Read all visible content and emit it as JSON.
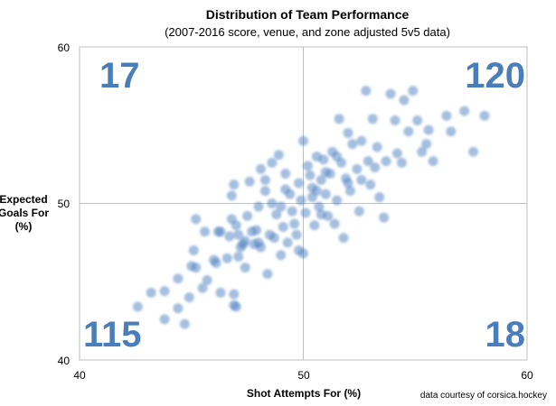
{
  "chart_data": {
    "type": "scatter",
    "title": "Distribution of Team Performance",
    "subtitle": "(2007-2016 score, venue, and zone adjusted 5v5 data)",
    "xlabel": "Shot Attempts For (%)",
    "ylabel": [
      "Expected",
      "Goals For",
      "(%)"
    ],
    "xlim": [
      40,
      60
    ],
    "ylim": [
      40,
      60
    ],
    "xticks": [
      "40",
      "50",
      "60"
    ],
    "yticks": [
      "40",
      "50",
      "60"
    ],
    "grid": "center lines at 50",
    "point_color": "#4a7fc0",
    "quadrant_counts": {
      "top_left": "17",
      "top_right": "120",
      "bottom_left": "115",
      "bottom_right": "18"
    },
    "quadrant_color": "#4a7ebb",
    "credit": "data courtesy of corsica.hockey",
    "points": [
      [
        42.6,
        43.4
      ],
      [
        43.2,
        44.3
      ],
      [
        43.8,
        44.4
      ],
      [
        43.8,
        42.6
      ],
      [
        44.4,
        45.2
      ],
      [
        44.4,
        43.3
      ],
      [
        44.7,
        42.3
      ],
      [
        44.9,
        44.0
      ],
      [
        45.0,
        46.0
      ],
      [
        45.1,
        47.0
      ],
      [
        45.2,
        45.9
      ],
      [
        45.2,
        49.0
      ],
      [
        45.5,
        44.6
      ],
      [
        45.6,
        48.2
      ],
      [
        45.7,
        45.1
      ],
      [
        46.0,
        46.4
      ],
      [
        46.1,
        46.2
      ],
      [
        46.3,
        44.3
      ],
      [
        46.3,
        48.2
      ],
      [
        46.6,
        46.5
      ],
      [
        46.7,
        47.9
      ],
      [
        46.9,
        44.2
      ],
      [
        46.9,
        43.5
      ],
      [
        47.0,
        43.4
      ],
      [
        46.9,
        51.2
      ],
      [
        46.8,
        49.0
      ],
      [
        46.8,
        50.5
      ],
      [
        47.0,
        48.6
      ],
      [
        47.1,
        46.6
      ],
      [
        47.2,
        47.2
      ],
      [
        47.4,
        47.6
      ],
      [
        47.4,
        45.9
      ],
      [
        47.5,
        49.2
      ],
      [
        47.6,
        51.4
      ],
      [
        47.8,
        47.4
      ],
      [
        47.9,
        48.3
      ],
      [
        48.0,
        49.8
      ],
      [
        48.1,
        47.2
      ],
      [
        48.1,
        52.2
      ],
      [
        48.3,
        51.5
      ],
      [
        48.4,
        45.5
      ],
      [
        48.5,
        48.0
      ],
      [
        48.6,
        50.0
      ],
      [
        48.7,
        47.8
      ],
      [
        48.8,
        49.3
      ],
      [
        48.9,
        53.1
      ],
      [
        49.0,
        46.7
      ],
      [
        49.1,
        48.5
      ],
      [
        49.2,
        51.9
      ],
      [
        49.3,
        47.5
      ],
      [
        49.4,
        50.6
      ],
      [
        49.5,
        49.5
      ],
      [
        49.6,
        48.7
      ],
      [
        49.8,
        47.0
      ],
      [
        49.8,
        51.3
      ],
      [
        49.9,
        50.2
      ],
      [
        50.0,
        46.8
      ],
      [
        50.0,
        54.0
      ],
      [
        50.1,
        49.4
      ],
      [
        50.2,
        52.4
      ],
      [
        50.3,
        51.8
      ],
      [
        50.4,
        50.4
      ],
      [
        50.5,
        48.6
      ],
      [
        50.6,
        53.0
      ],
      [
        50.7,
        49.8
      ],
      [
        50.8,
        51.5
      ],
      [
        50.9,
        52.8
      ],
      [
        51.0,
        50.6
      ],
      [
        51.1,
        49.2
      ],
      [
        51.2,
        51.9
      ],
      [
        51.3,
        53.3
      ],
      [
        51.4,
        48.7
      ],
      [
        51.5,
        50.2
      ],
      [
        51.6,
        55.4
      ],
      [
        51.7,
        52.6
      ],
      [
        51.8,
        47.8
      ],
      [
        51.9,
        51.6
      ],
      [
        52.0,
        54.5
      ],
      [
        52.1,
        50.8
      ],
      [
        52.2,
        53.8
      ],
      [
        52.4,
        52.2
      ],
      [
        52.5,
        49.5
      ],
      [
        52.6,
        54.0
      ],
      [
        52.8,
        57.2
      ],
      [
        52.9,
        52.7
      ],
      [
        53.0,
        51.2
      ],
      [
        53.1,
        55.4
      ],
      [
        53.3,
        53.6
      ],
      [
        53.4,
        50.4
      ],
      [
        53.6,
        49.1
      ],
      [
        53.7,
        52.7
      ],
      [
        53.9,
        57.0
      ],
      [
        54.1,
        55.3
      ],
      [
        54.2,
        53.2
      ],
      [
        54.4,
        52.6
      ],
      [
        54.5,
        56.6
      ],
      [
        54.7,
        54.6
      ],
      [
        54.9,
        57.2
      ],
      [
        55.1,
        55.3
      ],
      [
        55.3,
        53.3
      ],
      [
        55.5,
        53.8
      ],
      [
        55.6,
        54.7
      ],
      [
        55.8,
        52.7
      ],
      [
        56.4,
        55.6
      ],
      [
        56.6,
        54.6
      ],
      [
        57.2,
        55.9
      ],
      [
        57.6,
        53.3
      ],
      [
        58.1,
        55.6
      ],
      [
        48.3,
        50.8
      ],
      [
        47.7,
        48.2
      ],
      [
        49.0,
        49.8
      ],
      [
        50.4,
        51.0
      ],
      [
        51.0,
        52.0
      ],
      [
        52.0,
        51.3
      ],
      [
        46.2,
        48.2
      ],
      [
        47.3,
        47.4
      ],
      [
        48.0,
        47.5
      ],
      [
        49.7,
        48.0
      ],
      [
        50.8,
        49.3
      ],
      [
        49.2,
        50.9
      ],
      [
        48.6,
        52.6
      ],
      [
        47.1,
        48.0
      ],
      [
        53.2,
        52.3
      ],
      [
        52.6,
        51.5
      ],
      [
        51.5,
        53.0
      ],
      [
        50.6,
        50.8
      ]
    ]
  }
}
